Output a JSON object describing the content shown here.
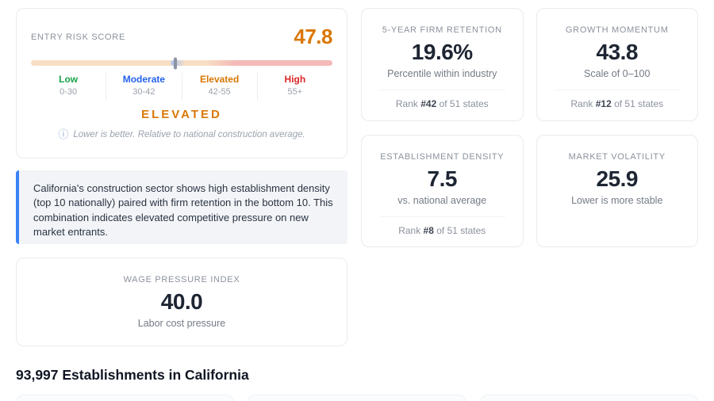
{
  "risk_card": {
    "label": "ENTRY RISK SCORE",
    "value": "47.8",
    "value_color": "#d97706",
    "status": "ELEVATED",
    "status_color": "#d97706",
    "footnote": "Lower is better. Relative to national construction average.",
    "info_icon": "ⓘ",
    "gauge": {
      "left_color": "#f7dfc5",
      "right_color": "#f4b9b8",
      "red_start_pct": 63,
      "marker_color": "#8b94a3",
      "glow_color": "#a9c4ee"
    },
    "bands": [
      {
        "name": "Low",
        "range": "0-30",
        "color": "#16a34a"
      },
      {
        "name": "Moderate",
        "range": "30-42",
        "color": "#2563eb"
      },
      {
        "name": "Elevated",
        "range": "42-55",
        "color": "#d97706"
      },
      {
        "name": "High",
        "range": "55+",
        "color": "#dc2626"
      }
    ]
  },
  "insight": {
    "text": "California's construction sector shows high establishment density (top 10 nationally) paired with firm retention in the bottom 10. This combination indicates elevated competitive pressure on new market entrants."
  },
  "metric_cards": [
    {
      "label": "5-YEAR FIRM RETENTION",
      "value": "19.6%",
      "sub": "Percentile within industry",
      "rank_prefix": "Rank",
      "rank": "#42",
      "rank_suffix": "of 51 states"
    },
    {
      "label": "GROWTH MOMENTUM",
      "value": "43.8",
      "sub": "Scale of 0–100",
      "rank_prefix": "Rank",
      "rank": "#12",
      "rank_suffix": "of 51 states"
    },
    {
      "label": "ESTABLISHMENT DENSITY",
      "value": "7.5",
      "sub": "vs. national average",
      "rank_prefix": "Rank",
      "rank": "#8",
      "rank_suffix": "of 51 states"
    },
    {
      "label": "MARKET VOLATILITY",
      "value": "25.9",
      "sub": "Lower is more stable"
    }
  ],
  "wage_card": {
    "label": "WAGE PRESSURE INDEX",
    "value": "40.0",
    "sub": "Labor cost pressure"
  },
  "section_heading": "93,997 Establishments in California"
}
